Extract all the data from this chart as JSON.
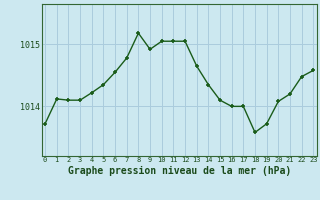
{
  "hours": [
    0,
    1,
    2,
    3,
    4,
    5,
    6,
    7,
    8,
    9,
    10,
    11,
    12,
    13,
    14,
    15,
    16,
    17,
    18,
    19,
    20,
    21,
    22,
    23
  ],
  "pressure": [
    1013.72,
    1014.12,
    1014.1,
    1014.1,
    1014.22,
    1014.35,
    1014.55,
    1014.78,
    1015.18,
    1014.92,
    1015.05,
    1015.05,
    1015.05,
    1014.65,
    1014.35,
    1014.1,
    1014.0,
    1014.0,
    1013.58,
    1013.72,
    1014.08,
    1014.2,
    1014.48,
    1014.58
  ],
  "line_color": "#1a5c1a",
  "marker": "+",
  "bg_color": "#cce8f0",
  "grid_color": "#aaccdd",
  "xlabel": "Graphe pression niveau de la mer (hPa)",
  "xlabel_fontsize": 7,
  "ytick_labels": [
    "1014",
    "1015"
  ],
  "ytick_values": [
    1014,
    1015
  ],
  "ylim": [
    1013.2,
    1015.65
  ],
  "xlim": [
    -0.3,
    23.3
  ],
  "xtick_labels": [
    "0",
    "1",
    "2",
    "3",
    "4",
    "5",
    "6",
    "7",
    "8",
    "9",
    "10",
    "11",
    "12",
    "13",
    "14",
    "15",
    "16",
    "17",
    "18",
    "19",
    "20",
    "21",
    "22",
    "23"
  ]
}
